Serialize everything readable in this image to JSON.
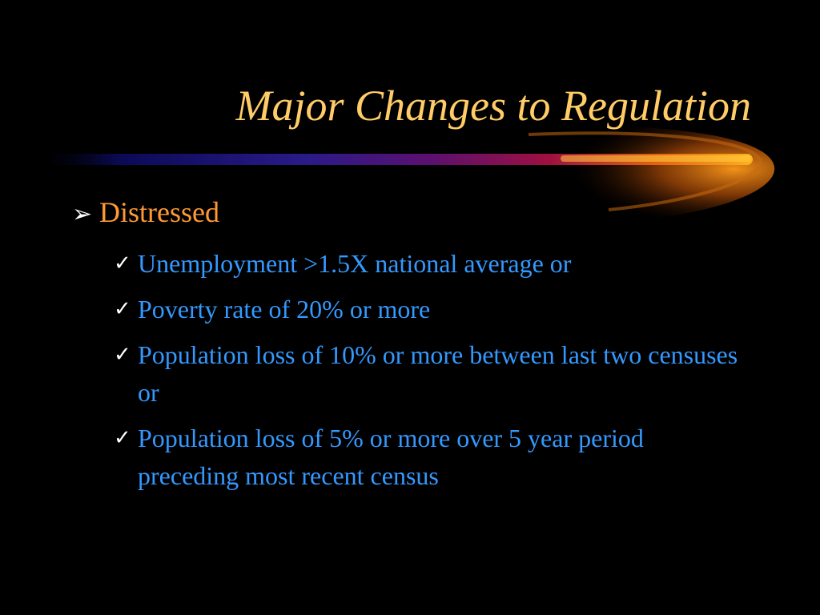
{
  "slide": {
    "title": "Major Changes to Regulation",
    "bullet": {
      "label": "Distressed",
      "icon": "arrow-bullet-icon"
    },
    "sub_bullets": [
      {
        "text": "Unemployment >1.5X national average or",
        "icon": "checkmark-icon"
      },
      {
        "text": "Poverty rate of 20% or more",
        "icon": "checkmark-icon"
      },
      {
        "text": "Population loss of 10% or more between last two censuses or",
        "icon": "checkmark-icon"
      },
      {
        "text": "Population loss of 5% or more over 5 year period preceding most recent census",
        "icon": "checkmark-icon"
      }
    ],
    "colors": {
      "background": "#000000",
      "title": "#ffcc66",
      "bullet": "#ff9933",
      "sub_bullet": "#3399ff",
      "markers": "#ffffff"
    }
  }
}
